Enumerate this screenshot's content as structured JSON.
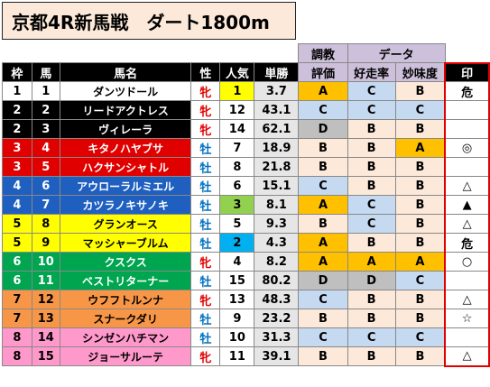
{
  "title": "京都4R新馬戦　ダート1800m",
  "header_groups": {
    "training": "調教",
    "training2": "評価",
    "data": "データ"
  },
  "columns": [
    "枠",
    "馬",
    "馬名",
    "性",
    "人気",
    "単勝",
    "評価",
    "好走率",
    "妙味度",
    "印"
  ],
  "colors": {
    "frame": {
      "1": {
        "bg": "#ffffff",
        "fg": "#000000"
      },
      "2": {
        "bg": "#000000",
        "fg": "#ffffff"
      },
      "3": {
        "bg": "#e00000",
        "fg": "#ffffff"
      },
      "4": {
        "bg": "#1f5fbf",
        "fg": "#ffffff"
      },
      "5": {
        "bg": "#ffff00",
        "fg": "#000000"
      },
      "6": {
        "bg": "#00a550",
        "fg": "#ffffff"
      },
      "7": {
        "bg": "#f79646",
        "fg": "#000000"
      },
      "8": {
        "bg": "#ff99cc",
        "fg": "#000000"
      }
    },
    "pop_highlight": {
      "1": "#ffff00",
      "2": "#00b0f0",
      "3": "#92d050"
    },
    "odds_bg": "#e6e6e6"
  },
  "rows": [
    {
      "waku": "1",
      "uma": "1",
      "name": "ダンツドール",
      "sex": "牝",
      "pop": "1",
      "odds": "3.7",
      "eval": "A",
      "rate": "C",
      "value": "B",
      "mark": "危"
    },
    {
      "waku": "2",
      "uma": "2",
      "name": "リードアクトレス",
      "sex": "牝",
      "pop": "12",
      "odds": "43.1",
      "eval": "C",
      "rate": "C",
      "value": "C",
      "mark": ""
    },
    {
      "waku": "2",
      "uma": "3",
      "name": "ヴィレーラ",
      "sex": "牝",
      "pop": "14",
      "odds": "62.1",
      "eval": "D",
      "rate": "B",
      "value": "B",
      "mark": ""
    },
    {
      "waku": "3",
      "uma": "4",
      "name": "キタノハヤブサ",
      "sex": "牡",
      "pop": "7",
      "odds": "18.9",
      "eval": "B",
      "rate": "B",
      "value": "A",
      "mark": "◎"
    },
    {
      "waku": "3",
      "uma": "5",
      "name": "ハクサンシャトル",
      "sex": "牡",
      "pop": "8",
      "odds": "21.8",
      "eval": "B",
      "rate": "B",
      "value": "B",
      "mark": ""
    },
    {
      "waku": "4",
      "uma": "6",
      "name": "アウローラルミエル",
      "sex": "牡",
      "pop": "6",
      "odds": "15.1",
      "eval": "C",
      "rate": "B",
      "value": "B",
      "mark": "△"
    },
    {
      "waku": "4",
      "uma": "7",
      "name": "カツラノキサノキ",
      "sex": "牡",
      "pop": "3",
      "odds": "8.1",
      "eval": "A",
      "rate": "C",
      "value": "B",
      "mark": "▲"
    },
    {
      "waku": "5",
      "uma": "8",
      "name": "グランオース",
      "sex": "牡",
      "pop": "5",
      "odds": "9.3",
      "eval": "B",
      "rate": "C",
      "value": "B",
      "mark": "△"
    },
    {
      "waku": "5",
      "uma": "9",
      "name": "マッシャーブルム",
      "sex": "牡",
      "pop": "2",
      "odds": "4.3",
      "eval": "A",
      "rate": "B",
      "value": "B",
      "mark": "危"
    },
    {
      "waku": "6",
      "uma": "10",
      "name": "クスクス",
      "sex": "牝",
      "pop": "4",
      "odds": "8.2",
      "eval": "A",
      "rate": "A",
      "value": "A",
      "mark": "○"
    },
    {
      "waku": "6",
      "uma": "11",
      "name": "ベストリターナー",
      "sex": "牡",
      "pop": "15",
      "odds": "80.2",
      "eval": "D",
      "rate": "D",
      "value": "C",
      "mark": ""
    },
    {
      "waku": "7",
      "uma": "12",
      "name": "ウフフトルンナ",
      "sex": "牝",
      "pop": "13",
      "odds": "48.3",
      "eval": "C",
      "rate": "B",
      "value": "B",
      "mark": "△"
    },
    {
      "waku": "7",
      "uma": "13",
      "name": "スナークダリ",
      "sex": "牡",
      "pop": "9",
      "odds": "23.2",
      "eval": "B",
      "rate": "B",
      "value": "B",
      "mark": "☆"
    },
    {
      "waku": "8",
      "uma": "14",
      "name": "シンゼンハチマン",
      "sex": "牡",
      "pop": "10",
      "odds": "31.3",
      "eval": "C",
      "rate": "C",
      "value": "C",
      "mark": ""
    },
    {
      "waku": "8",
      "uma": "15",
      "name": "ジョーサルーテ",
      "sex": "牝",
      "pop": "11",
      "odds": "39.1",
      "eval": "B",
      "rate": "B",
      "value": "B",
      "mark": "△"
    }
  ]
}
